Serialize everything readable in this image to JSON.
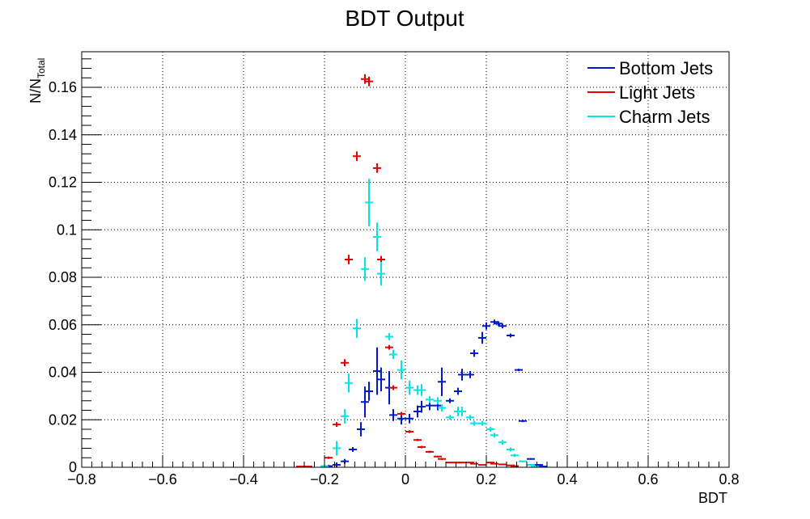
{
  "chart_data": {
    "type": "scatter",
    "title": "BDT Output",
    "xlabel": "BDT",
    "ylabel_main": "N/N",
    "ylabel_sub": "Total",
    "xlim": [
      -0.8,
      0.8
    ],
    "ylim": [
      0,
      0.175
    ],
    "bin_half_width": 0.01,
    "grid": true,
    "legend_position": "top-right",
    "x_ticks": [
      {
        "value": -0.8,
        "label": "−0.8"
      },
      {
        "value": -0.6,
        "label": "−0.6"
      },
      {
        "value": -0.4,
        "label": "−0.4"
      },
      {
        "value": -0.2,
        "label": "−0.2"
      },
      {
        "value": 0,
        "label": "0"
      },
      {
        "value": 0.2,
        "label": "0.2"
      },
      {
        "value": 0.4,
        "label": "0.4"
      },
      {
        "value": 0.6,
        "label": "0.6"
      },
      {
        "value": 0.8,
        "label": "0.8"
      }
    ],
    "y_ticks": [
      {
        "value": 0,
        "label": "0"
      },
      {
        "value": 0.02,
        "label": "0.02"
      },
      {
        "value": 0.04,
        "label": "0.04"
      },
      {
        "value": 0.06,
        "label": "0.06"
      },
      {
        "value": 0.08,
        "label": "0.08"
      },
      {
        "value": 0.1,
        "label": "0.1"
      },
      {
        "value": 0.12,
        "label": "0.12"
      },
      {
        "value": 0.14,
        "label": "0.14"
      },
      {
        "value": 0.16,
        "label": "0.16"
      }
    ],
    "series": [
      {
        "name": "Bottom Jets",
        "color": "#0019cc",
        "points": [
          {
            "x": -0.19,
            "y": 0.0005,
            "err": 0.0005
          },
          {
            "x": -0.17,
            "y": 0.001,
            "err": 0.001
          },
          {
            "x": -0.15,
            "y": 0.0025,
            "err": 0.001
          },
          {
            "x": -0.13,
            "y": 0.0075,
            "err": 0.001
          },
          {
            "x": -0.11,
            "y": 0.016,
            "err": 0.003
          },
          {
            "x": -0.1,
            "y": 0.0275,
            "err": 0.0065
          },
          {
            "x": -0.09,
            "y": 0.032,
            "err": 0.004
          },
          {
            "x": -0.07,
            "y": 0.0405,
            "err": 0.01
          },
          {
            "x": -0.06,
            "y": 0.037,
            "err": 0.005
          },
          {
            "x": -0.04,
            "y": 0.0335,
            "err": 0.007
          },
          {
            "x": -0.03,
            "y": 0.022,
            "err": 0.0025
          },
          {
            "x": -0.01,
            "y": 0.0205,
            "err": 0.0025
          },
          {
            "x": 0.01,
            "y": 0.0205,
            "err": 0.002
          },
          {
            "x": 0.03,
            "y": 0.0235,
            "err": 0.0025
          },
          {
            "x": 0.04,
            "y": 0.0255,
            "err": 0.0025
          },
          {
            "x": 0.06,
            "y": 0.026,
            "err": 0.002
          },
          {
            "x": 0.08,
            "y": 0.026,
            "err": 0.002
          },
          {
            "x": 0.09,
            "y": 0.036,
            "err": 0.006
          },
          {
            "x": 0.11,
            "y": 0.028,
            "err": 0.001
          },
          {
            "x": 0.13,
            "y": 0.032,
            "err": 0.0015
          },
          {
            "x": 0.14,
            "y": 0.039,
            "err": 0.0025
          },
          {
            "x": 0.16,
            "y": 0.039,
            "err": 0.0015
          },
          {
            "x": 0.17,
            "y": 0.048,
            "err": 0.0015
          },
          {
            "x": 0.19,
            "y": 0.0545,
            "err": 0.0025
          },
          {
            "x": 0.2,
            "y": 0.0595,
            "err": 0.0015
          },
          {
            "x": 0.22,
            "y": 0.0612,
            "err": 0.001
          },
          {
            "x": 0.23,
            "y": 0.0605,
            "err": 0.001
          },
          {
            "x": 0.24,
            "y": 0.0595,
            "err": 0.001
          },
          {
            "x": 0.26,
            "y": 0.0555,
            "err": 0.0008
          },
          {
            "x": 0.28,
            "y": 0.041,
            "err": 0.0005
          },
          {
            "x": 0.29,
            "y": 0.0195,
            "err": 0.0005
          },
          {
            "x": 0.31,
            "y": 0.0035,
            "err": 0.0003
          },
          {
            "x": 0.33,
            "y": 0.001,
            "err": 0.0002
          },
          {
            "x": 0.34,
            "y": 0.0003,
            "err": 0.0001
          }
        ]
      },
      {
        "name": "Light Jets",
        "color": "#e60000",
        "points": [
          {
            "x": -0.26,
            "y": 0.0003,
            "err": 0.0001
          },
          {
            "x": -0.24,
            "y": 0.0003,
            "err": 0.0001
          },
          {
            "x": -0.19,
            "y": 0.004,
            "err": 0.0005
          },
          {
            "x": -0.17,
            "y": 0.018,
            "err": 0.001
          },
          {
            "x": -0.15,
            "y": 0.044,
            "err": 0.0015
          },
          {
            "x": -0.14,
            "y": 0.0875,
            "err": 0.002
          },
          {
            "x": -0.12,
            "y": 0.131,
            "err": 0.002
          },
          {
            "x": -0.1,
            "y": 0.1635,
            "err": 0.002
          },
          {
            "x": -0.09,
            "y": 0.1625,
            "err": 0.002
          },
          {
            "x": -0.07,
            "y": 0.126,
            "err": 0.002
          },
          {
            "x": -0.06,
            "y": 0.0875,
            "err": 0.0015
          },
          {
            "x": -0.04,
            "y": 0.0505,
            "err": 0.001
          },
          {
            "x": -0.03,
            "y": 0.0335,
            "err": 0.001
          },
          {
            "x": -0.01,
            "y": 0.0225,
            "err": 0.0008
          },
          {
            "x": 0.01,
            "y": 0.015,
            "err": 0.0006
          },
          {
            "x": 0.03,
            "y": 0.0115,
            "err": 0.0005
          },
          {
            "x": 0.04,
            "y": 0.0085,
            "err": 0.0005
          },
          {
            "x": 0.06,
            "y": 0.0065,
            "err": 0.0005
          },
          {
            "x": 0.08,
            "y": 0.0045,
            "err": 0.0004
          },
          {
            "x": 0.09,
            "y": 0.0035,
            "err": 0.0004
          },
          {
            "x": 0.11,
            "y": 0.002,
            "err": 0.0003
          },
          {
            "x": 0.13,
            "y": 0.002,
            "err": 0.0003
          },
          {
            "x": 0.14,
            "y": 0.002,
            "err": 0.0003
          },
          {
            "x": 0.16,
            "y": 0.002,
            "err": 0.0003
          },
          {
            "x": 0.17,
            "y": 0.0015,
            "err": 0.0003
          },
          {
            "x": 0.19,
            "y": 0.001,
            "err": 0.0002
          },
          {
            "x": 0.21,
            "y": 0.002,
            "err": 0.0003
          },
          {
            "x": 0.22,
            "y": 0.0015,
            "err": 0.0002
          },
          {
            "x": 0.24,
            "y": 0.0012,
            "err": 0.0002
          },
          {
            "x": 0.26,
            "y": 0.0008,
            "err": 0.0002
          },
          {
            "x": 0.27,
            "y": 0.0005,
            "err": 0.0001
          }
        ]
      },
      {
        "name": "Charm Jets",
        "color": "#00e5e5",
        "points": [
          {
            "x": -0.2,
            "y": 0.0005,
            "err": 0.0003
          },
          {
            "x": -0.17,
            "y": 0.008,
            "err": 0.003
          },
          {
            "x": -0.15,
            "y": 0.0215,
            "err": 0.003
          },
          {
            "x": -0.14,
            "y": 0.0355,
            "err": 0.004
          },
          {
            "x": -0.12,
            "y": 0.0585,
            "err": 0.004
          },
          {
            "x": -0.1,
            "y": 0.0835,
            "err": 0.005
          },
          {
            "x": -0.09,
            "y": 0.1115,
            "err": 0.01
          },
          {
            "x": -0.07,
            "y": 0.097,
            "err": 0.006
          },
          {
            "x": -0.06,
            "y": 0.0815,
            "err": 0.005
          },
          {
            "x": -0.04,
            "y": 0.055,
            "err": 0.0015
          },
          {
            "x": -0.03,
            "y": 0.0475,
            "err": 0.002
          },
          {
            "x": -0.01,
            "y": 0.041,
            "err": 0.004
          },
          {
            "x": 0.01,
            "y": 0.0335,
            "err": 0.003
          },
          {
            "x": 0.03,
            "y": 0.0325,
            "err": 0.002
          },
          {
            "x": 0.04,
            "y": 0.0325,
            "err": 0.0025
          },
          {
            "x": 0.06,
            "y": 0.0285,
            "err": 0.0015
          },
          {
            "x": 0.08,
            "y": 0.028,
            "err": 0.0015
          },
          {
            "x": 0.09,
            "y": 0.025,
            "err": 0.0015
          },
          {
            "x": 0.11,
            "y": 0.021,
            "err": 0.001
          },
          {
            "x": 0.13,
            "y": 0.0235,
            "err": 0.002
          },
          {
            "x": 0.14,
            "y": 0.0235,
            "err": 0.002
          },
          {
            "x": 0.16,
            "y": 0.021,
            "err": 0.001
          },
          {
            "x": 0.17,
            "y": 0.0185,
            "err": 0.001
          },
          {
            "x": 0.19,
            "y": 0.0185,
            "err": 0.001
          },
          {
            "x": 0.21,
            "y": 0.016,
            "err": 0.001
          },
          {
            "x": 0.22,
            "y": 0.0135,
            "err": 0.001
          },
          {
            "x": 0.24,
            "y": 0.0105,
            "err": 0.001
          },
          {
            "x": 0.26,
            "y": 0.0075,
            "err": 0.0008
          },
          {
            "x": 0.27,
            "y": 0.005,
            "err": 0.0006
          },
          {
            "x": 0.29,
            "y": 0.0025,
            "err": 0.0004
          },
          {
            "x": 0.31,
            "y": 0.001,
            "err": 0.0003
          },
          {
            "x": 0.32,
            "y": 0.0003,
            "err": 0.0002
          }
        ]
      }
    ]
  }
}
